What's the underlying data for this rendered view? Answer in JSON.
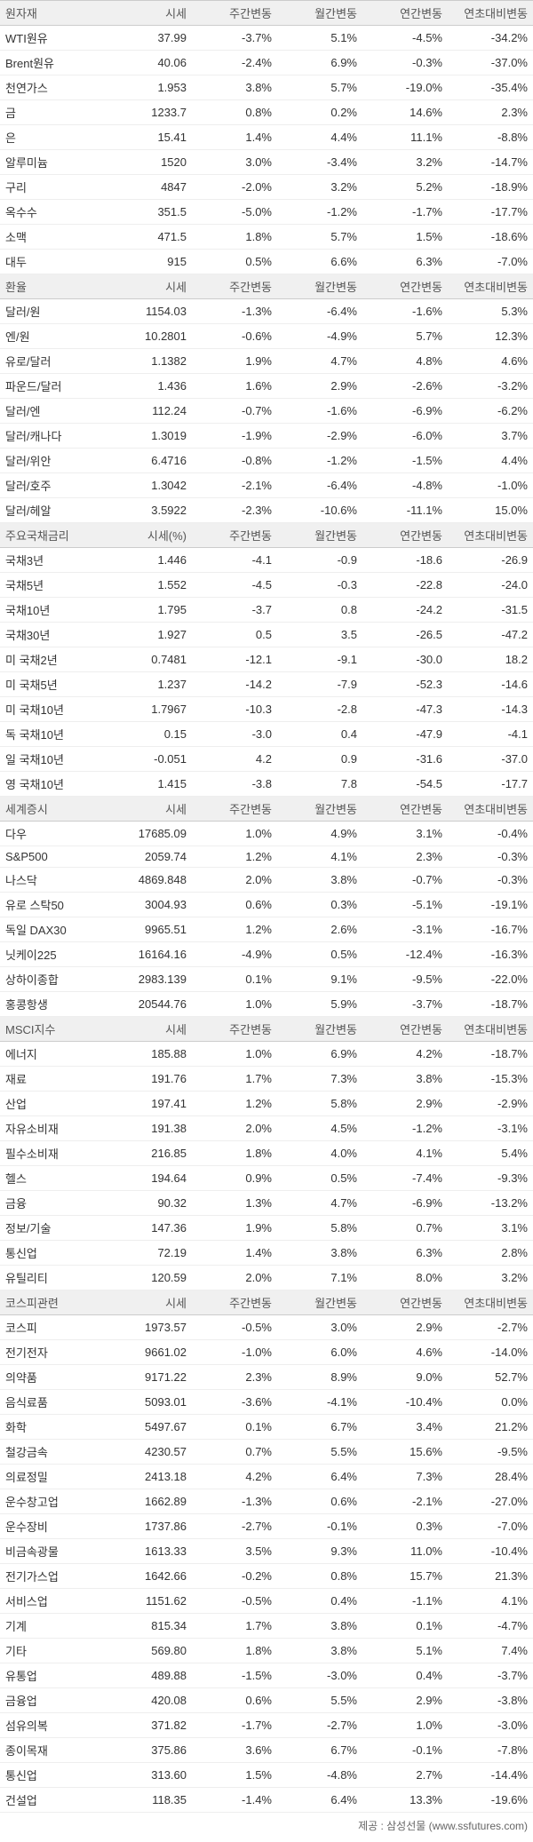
{
  "columns_default": [
    "시세",
    "주간변동",
    "월간변동",
    "연간변동",
    "연초대비변동"
  ],
  "columns_rate": [
    "시세(%)",
    "주간변동",
    "월간변동",
    "연간변동",
    "연초대비변동"
  ],
  "sections": [
    {
      "title": "원자재",
      "cols": "default",
      "rows": [
        [
          "WTI원유",
          "37.99",
          "-3.7%",
          "5.1%",
          "-4.5%",
          "-34.2%"
        ],
        [
          "Brent원유",
          "40.06",
          "-2.4%",
          "6.9%",
          "-0.3%",
          "-37.0%"
        ],
        [
          "천연가스",
          "1.953",
          "3.8%",
          "5.7%",
          "-19.0%",
          "-35.4%"
        ],
        [
          "금",
          "1233.7",
          "0.8%",
          "0.2%",
          "14.6%",
          "2.3%"
        ],
        [
          "은",
          "15.41",
          "1.4%",
          "4.4%",
          "11.1%",
          "-8.8%"
        ],
        [
          "알루미늄",
          "1520",
          "3.0%",
          "-3.4%",
          "3.2%",
          "-14.7%"
        ],
        [
          "구리",
          "4847",
          "-2.0%",
          "3.2%",
          "5.2%",
          "-18.9%"
        ],
        [
          "옥수수",
          "351.5",
          "-5.0%",
          "-1.2%",
          "-1.7%",
          "-17.7%"
        ],
        [
          "소맥",
          "471.5",
          "1.8%",
          "5.7%",
          "1.5%",
          "-18.6%"
        ],
        [
          "대두",
          "915",
          "0.5%",
          "6.6%",
          "6.3%",
          "-7.0%"
        ]
      ]
    },
    {
      "title": "환율",
      "cols": "default",
      "rows": [
        [
          "달러/원",
          "1154.03",
          "-1.3%",
          "-6.4%",
          "-1.6%",
          "5.3%"
        ],
        [
          "엔/원",
          "10.2801",
          "-0.6%",
          "-4.9%",
          "5.7%",
          "12.3%"
        ],
        [
          "유로/달러",
          "1.1382",
          "1.9%",
          "4.7%",
          "4.8%",
          "4.6%"
        ],
        [
          "파운드/달러",
          "1.436",
          "1.6%",
          "2.9%",
          "-2.6%",
          "-3.2%"
        ],
        [
          "달러/엔",
          "112.24",
          "-0.7%",
          "-1.6%",
          "-6.9%",
          "-6.2%"
        ],
        [
          "달러/캐나다",
          "1.3019",
          "-1.9%",
          "-2.9%",
          "-6.0%",
          "3.7%"
        ],
        [
          "달러/위안",
          "6.4716",
          "-0.8%",
          "-1.2%",
          "-1.5%",
          "4.4%"
        ],
        [
          "달러/호주",
          "1.3042",
          "-2.1%",
          "-6.4%",
          "-4.8%",
          "-1.0%"
        ],
        [
          "달러/헤알",
          "3.5922",
          "-2.3%",
          "-10.6%",
          "-11.1%",
          "15.0%"
        ]
      ]
    },
    {
      "title": "주요국채금리",
      "cols": "rate",
      "rows": [
        [
          "국채3년",
          "1.446",
          "-4.1",
          "-0.9",
          "-18.6",
          "-26.9"
        ],
        [
          "국채5년",
          "1.552",
          "-4.5",
          "-0.3",
          "-22.8",
          "-24.0"
        ],
        [
          "국채10년",
          "1.795",
          "-3.7",
          "0.8",
          "-24.2",
          "-31.5"
        ],
        [
          "국채30년",
          "1.927",
          "0.5",
          "3.5",
          "-26.5",
          "-47.2"
        ],
        [
          "미 국채2년",
          "0.7481",
          "-12.1",
          "-9.1",
          "-30.0",
          "18.2"
        ],
        [
          "미 국채5년",
          "1.237",
          "-14.2",
          "-7.9",
          "-52.3",
          "-14.6"
        ],
        [
          "미 국채10년",
          "1.7967",
          "-10.3",
          "-2.8",
          "-47.3",
          "-14.3"
        ],
        [
          "독 국채10년",
          "0.15",
          "-3.0",
          "0.4",
          "-47.9",
          "-4.1"
        ],
        [
          "일 국채10년",
          "-0.051",
          "4.2",
          "0.9",
          "-31.6",
          "-37.0"
        ],
        [
          "영 국채10년",
          "1.415",
          "-3.8",
          "7.8",
          "-54.5",
          "-17.7"
        ]
      ]
    },
    {
      "title": "세계증시",
      "cols": "default",
      "rows": [
        [
          "다우",
          "17685.09",
          "1.0%",
          "4.9%",
          "3.1%",
          "-0.4%"
        ],
        [
          "S&P500",
          "2059.74",
          "1.2%",
          "4.1%",
          "2.3%",
          "-0.3%"
        ],
        [
          "나스닥",
          "4869.848",
          "2.0%",
          "3.8%",
          "-0.7%",
          "-0.3%"
        ],
        [
          "유로 스탁50",
          "3004.93",
          "0.6%",
          "0.3%",
          "-5.1%",
          "-19.1%"
        ],
        [
          "독일 DAX30",
          "9965.51",
          "1.2%",
          "2.6%",
          "-3.1%",
          "-16.7%"
        ],
        [
          "닛케이225",
          "16164.16",
          "-4.9%",
          "0.5%",
          "-12.4%",
          "-16.3%"
        ],
        [
          "상하이종합",
          "2983.139",
          "0.1%",
          "9.1%",
          "-9.5%",
          "-22.0%"
        ],
        [
          "홍콩항생",
          "20544.76",
          "1.0%",
          "5.9%",
          "-3.7%",
          "-18.7%"
        ]
      ]
    },
    {
      "title": "MSCI지수",
      "cols": "default",
      "rows": [
        [
          "에너지",
          "185.88",
          "1.0%",
          "6.9%",
          "4.2%",
          "-18.7%"
        ],
        [
          "재료",
          "191.76",
          "1.7%",
          "7.3%",
          "3.8%",
          "-15.3%"
        ],
        [
          "산업",
          "197.41",
          "1.2%",
          "5.8%",
          "2.9%",
          "-2.9%"
        ],
        [
          "자유소비재",
          "191.38",
          "2.0%",
          "4.5%",
          "-1.2%",
          "-3.1%"
        ],
        [
          "필수소비재",
          "216.85",
          "1.8%",
          "4.0%",
          "4.1%",
          "5.4%"
        ],
        [
          "헬스",
          "194.64",
          "0.9%",
          "0.5%",
          "-7.4%",
          "-9.3%"
        ],
        [
          "금융",
          "90.32",
          "1.3%",
          "4.7%",
          "-6.9%",
          "-13.2%"
        ],
        [
          "정보/기술",
          "147.36",
          "1.9%",
          "5.8%",
          "0.7%",
          "3.1%"
        ],
        [
          "통신업",
          "72.19",
          "1.4%",
          "3.8%",
          "6.3%",
          "2.8%"
        ],
        [
          "유틸리티",
          "120.59",
          "2.0%",
          "7.1%",
          "8.0%",
          "3.2%"
        ]
      ]
    },
    {
      "title": "코스피관련",
      "cols": "default",
      "rows": [
        [
          "코스피",
          "1973.57",
          "-0.5%",
          "3.0%",
          "2.9%",
          "-2.7%"
        ],
        [
          "전기전자",
          "9661.02",
          "-1.0%",
          "6.0%",
          "4.6%",
          "-14.0%"
        ],
        [
          "의약품",
          "9171.22",
          "2.3%",
          "8.9%",
          "9.0%",
          "52.7%"
        ],
        [
          "음식료품",
          "5093.01",
          "-3.6%",
          "-4.1%",
          "-10.4%",
          "0.0%"
        ],
        [
          "화학",
          "5497.67",
          "0.1%",
          "6.7%",
          "3.4%",
          "21.2%"
        ],
        [
          "철강금속",
          "4230.57",
          "0.7%",
          "5.5%",
          "15.6%",
          "-9.5%"
        ],
        [
          "의료정밀",
          "2413.18",
          "4.2%",
          "6.4%",
          "7.3%",
          "28.4%"
        ],
        [
          "운수창고업",
          "1662.89",
          "-1.3%",
          "0.6%",
          "-2.1%",
          "-27.0%"
        ],
        [
          "운수장비",
          "1737.86",
          "-2.7%",
          "-0.1%",
          "0.3%",
          "-7.0%"
        ],
        [
          "비금속광물",
          "1613.33",
          "3.5%",
          "9.3%",
          "11.0%",
          "-10.4%"
        ],
        [
          "전기가스업",
          "1642.66",
          "-0.2%",
          "0.8%",
          "15.7%",
          "21.3%"
        ],
        [
          "서비스업",
          "1151.62",
          "-0.5%",
          "0.4%",
          "-1.1%",
          "4.1%"
        ],
        [
          "기계",
          "815.34",
          "1.7%",
          "3.8%",
          "0.1%",
          "-4.7%"
        ],
        [
          "기타",
          "569.80",
          "1.8%",
          "3.8%",
          "5.1%",
          "7.4%"
        ],
        [
          "유통업",
          "489.88",
          "-1.5%",
          "-3.0%",
          "0.4%",
          "-3.7%"
        ],
        [
          "금융업",
          "420.08",
          "0.6%",
          "5.5%",
          "2.9%",
          "-3.8%"
        ],
        [
          "섬유의복",
          "371.82",
          "-1.7%",
          "-2.7%",
          "1.0%",
          "-3.0%"
        ],
        [
          "종이목재",
          "375.86",
          "3.6%",
          "6.7%",
          "-0.1%",
          "-7.8%"
        ],
        [
          "통신업",
          "313.60",
          "1.5%",
          "-4.8%",
          "2.7%",
          "-14.4%"
        ],
        [
          "건설업",
          "118.35",
          "-1.4%",
          "6.4%",
          "13.3%",
          "-19.6%"
        ]
      ]
    }
  ],
  "source": "제공 : 삼성선물 (www.ssfutures.com)"
}
